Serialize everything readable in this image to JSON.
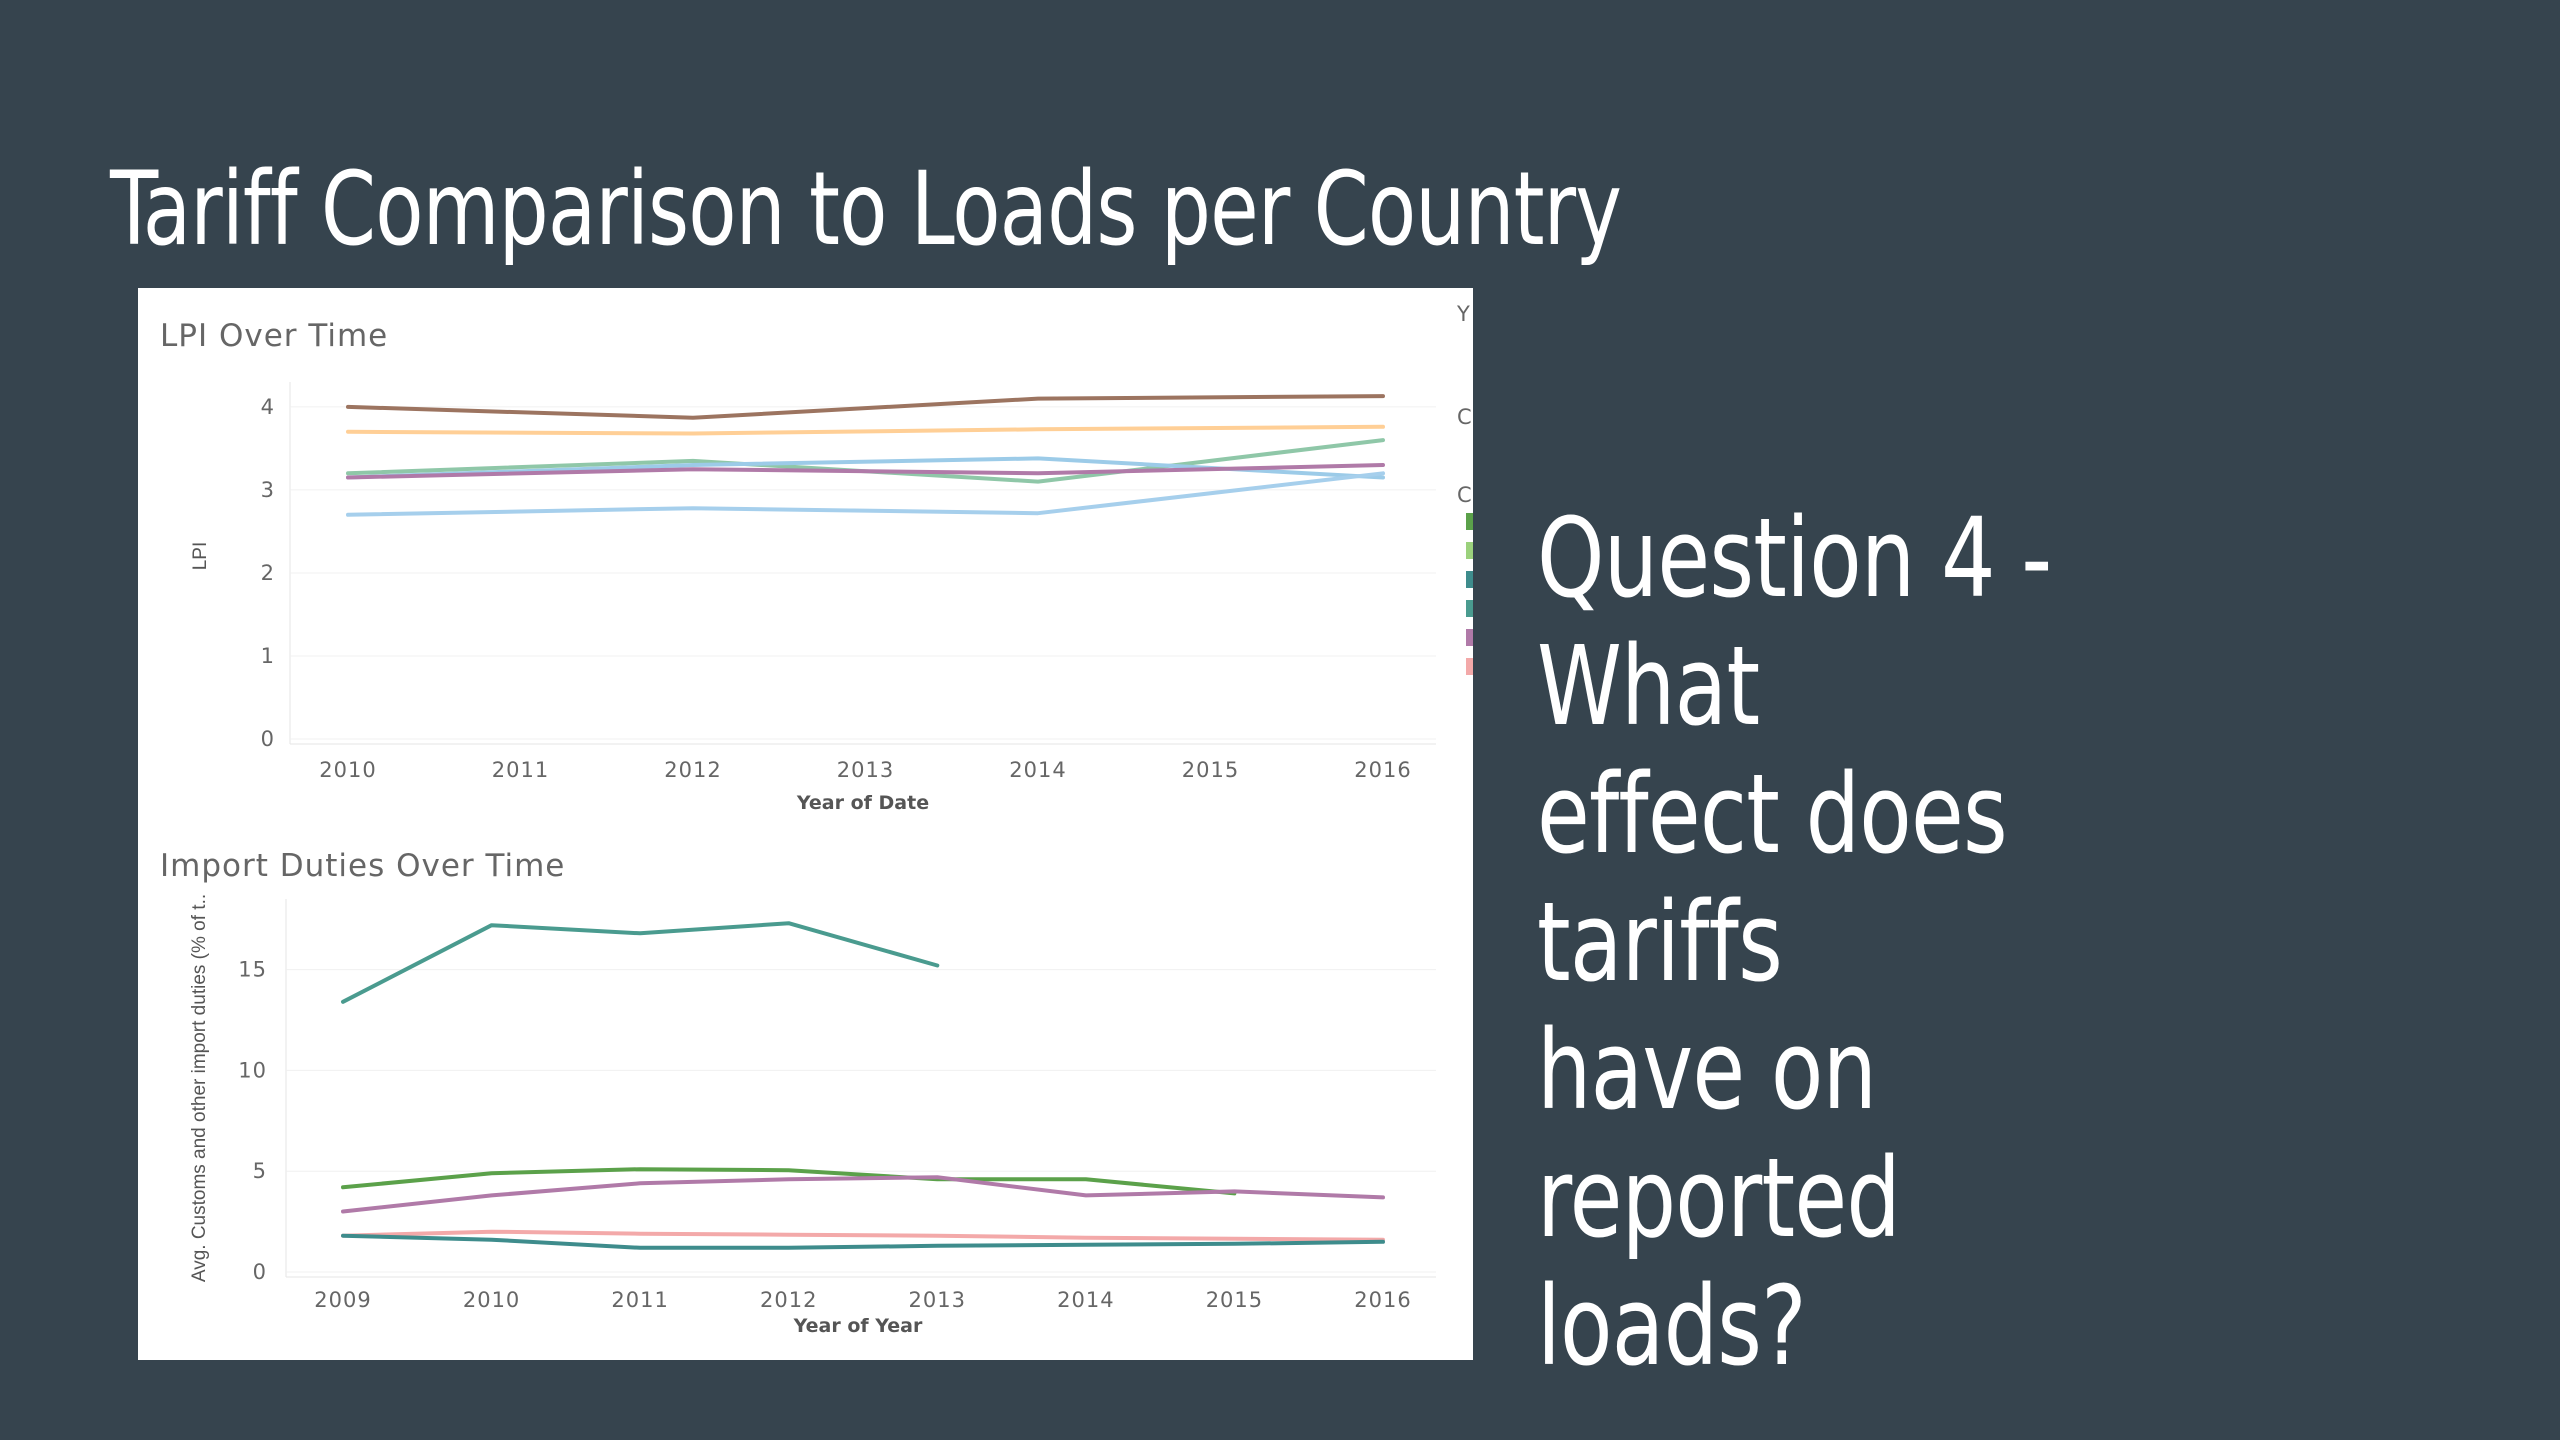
{
  "slide": {
    "title": "Tariff Comparison to Loads per Country",
    "question_lines": [
      "Question 4 - What",
      "effect does tariffs",
      "have on reported",
      "loads?"
    ]
  },
  "colors": {
    "background": "#36444e",
    "card": "#ffffff",
    "text": "#ffffff"
  },
  "legend_fragment": {
    "letters": [
      "Y",
      "C",
      "C"
    ],
    "swatch_colors": [
      "#5ba14a",
      "#9bd17c",
      "#3e8c8c",
      "#4a9b8f",
      "#b07aa8",
      "#f3a9a9"
    ]
  },
  "chart_data": [
    {
      "type": "line",
      "title": "LPI Over Time",
      "xlabel": "Year of Date",
      "ylabel": "LPI",
      "x": [
        "2010",
        "2011",
        "2012",
        "2013",
        "2014",
        "2015",
        "2016"
      ],
      "x_positions": [
        2010,
        2012,
        2014,
        2016
      ],
      "y_ticks": [
        0,
        1,
        2,
        3,
        4
      ],
      "ylim": [
        0,
        4.3
      ],
      "grid": true,
      "series": [
        {
          "color": "#9c7460",
          "points": [
            [
              2010,
              4.0
            ],
            [
              2012,
              3.87
            ],
            [
              2014,
              4.1
            ],
            [
              2016,
              4.13
            ]
          ]
        },
        {
          "color": "#ffcf96",
          "points": [
            [
              2010,
              3.7
            ],
            [
              2012,
              3.68
            ],
            [
              2014,
              3.73
            ],
            [
              2016,
              3.76
            ]
          ]
        },
        {
          "color": "#8fc7a8",
          "points": [
            [
              2010,
              3.2
            ],
            [
              2012,
              3.35
            ],
            [
              2014,
              3.1
            ],
            [
              2016,
              3.6
            ]
          ]
        },
        {
          "color": "#9ccbe8",
          "points": [
            [
              2010,
              3.15
            ],
            [
              2012,
              3.3
            ],
            [
              2014,
              3.38
            ],
            [
              2016,
              3.15
            ]
          ]
        },
        {
          "color": "#b07aa8",
          "points": [
            [
              2010,
              3.15
            ],
            [
              2012,
              3.25
            ],
            [
              2014,
              3.2
            ],
            [
              2016,
              3.3
            ]
          ]
        },
        {
          "color": "#a6cfec",
          "points": [
            [
              2010,
              2.7
            ],
            [
              2012,
              2.78
            ],
            [
              2014,
              2.72
            ],
            [
              2016,
              3.2
            ]
          ]
        }
      ]
    },
    {
      "type": "line",
      "title": "Import Duties Over Time",
      "xlabel": "Year of Year",
      "ylabel": "Avg. Customs and other import duties (% of t..",
      "x": [
        "2009",
        "2010",
        "2011",
        "2012",
        "2013",
        "2014",
        "2015",
        "2016"
      ],
      "y_ticks": [
        0,
        5,
        10,
        15
      ],
      "ylim": [
        0,
        18.5
      ],
      "grid": true,
      "series": [
        {
          "color": "#4a9b8f",
          "points": [
            [
              2009,
              13.4
            ],
            [
              2010,
              17.2
            ],
            [
              2011,
              16.8
            ],
            [
              2012,
              17.3
            ],
            [
              2013,
              15.2
            ]
          ]
        },
        {
          "color": "#5ba14a",
          "points": [
            [
              2009,
              4.2
            ],
            [
              2010,
              4.9
            ],
            [
              2011,
              5.1
            ],
            [
              2012,
              5.05
            ],
            [
              2013,
              4.6
            ],
            [
              2014,
              4.6
            ],
            [
              2015,
              3.9
            ]
          ]
        },
        {
          "color": "#b07aa8",
          "points": [
            [
              2009,
              3.0
            ],
            [
              2010,
              3.8
            ],
            [
              2011,
              4.4
            ],
            [
              2012,
              4.6
            ],
            [
              2013,
              4.7
            ],
            [
              2014,
              3.8
            ],
            [
              2015,
              4.0
            ],
            [
              2016,
              3.7
            ]
          ]
        },
        {
          "color": "#f3a9a9",
          "points": [
            [
              2009,
              1.8
            ],
            [
              2010,
              2.0
            ],
            [
              2011,
              1.9
            ],
            [
              2012,
              1.85
            ],
            [
              2013,
              1.8
            ],
            [
              2014,
              1.7
            ],
            [
              2015,
              1.65
            ],
            [
              2016,
              1.6
            ]
          ]
        },
        {
          "color": "#3e8c8c",
          "points": [
            [
              2009,
              1.8
            ],
            [
              2010,
              1.6
            ],
            [
              2011,
              1.2
            ],
            [
              2012,
              1.2
            ],
            [
              2013,
              1.3
            ],
            [
              2014,
              1.35
            ],
            [
              2015,
              1.4
            ],
            [
              2016,
              1.5
            ]
          ]
        }
      ]
    }
  ]
}
